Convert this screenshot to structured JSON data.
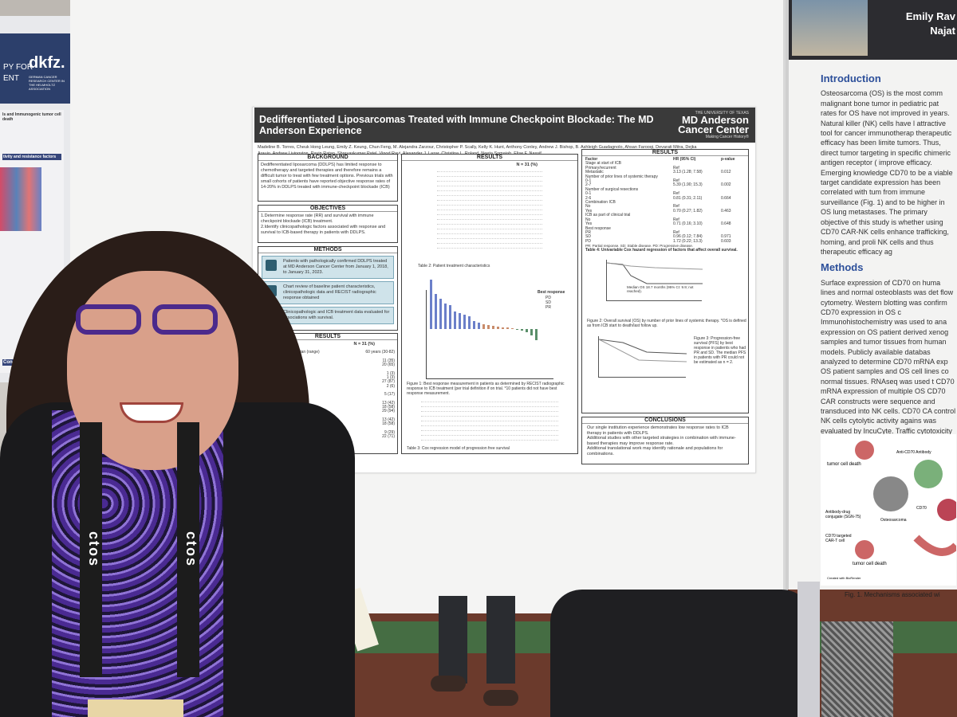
{
  "left_poster": {
    "header_text": "PY FOR\nENT",
    "logo": "dkfz.",
    "logo_subtitle": "GERMAN CANCER RESEARCH CENTER IN THE HELMHOLTZ ASSOCIATION",
    "heading_1": "ls and Immunogenic tumor cell death",
    "heading_2": "tivity and resistance factors",
    "footer": "Conclusion"
  },
  "main_poster": {
    "title": "Dedifferentiated Liposarcomas Treated with Immune Checkpoint Blockade: The MD Anderson Experience",
    "logo_univ": "THE UNIVERSITY OF TEXAS",
    "logo_name": "MD Anderson Cancer Center",
    "logo_motto": "Making Cancer History®",
    "authors": "Madeline B. Torres, Cheuk Hong Leung, Emily Z. Keung, Chun Feng, M. Alejandra Zarzour, Christopher P. Scally, Kelly K. Hunt, Anthony Conley, Andrew J. Bishop, B. Ashleigh Guadagnolo, Ahsan Farooqi, Devarati Mitra, Dejka Araujo, Andrew Livingston, Ravin Ratan, Shreyaskumar Patel, Vinod Ravi, Alexander J. Lazar, Christina L. Roland, Neeta Somaiah, Elise F. Nassif",
    "background_head": "BACKGROUND",
    "background_text": "Dedifferentiated liposarcoma (DDLPS) has limited response to chemotherapy and targeted therapies and therefore remains a difficult tumor to treat with few treatment options. Previous trials with small cohorts of patients have reported objective response rates of 14-20% in DDLPS treated with immune-checkpoint blockade (ICB)",
    "objectives_head": "OBJECTIVES",
    "objective_1": "1.Determine response rate (RR) and survival with immune checkpoint blockade (ICB) treatment.",
    "objective_2": "2.Identify clinicopathologic factors associated with response and survival to ICB-based therapy in patients with DDLPS.",
    "methods_head": "METHODS",
    "method_1": "Patients with pathologically confirmed DDLPS treated at MD Anderson Cancer Center from January 1, 2018, to January 31, 2023.",
    "method_2": "Chart review of baseline patient characteristics, clinicopathologic data and RECIST radiographic response obtained",
    "method_3": "Clinicopathologic and ICB treatment data evaluated for associations with survival.",
    "results_head": "RESULTS",
    "results_left_header": "N = 31 (%)",
    "results_left_rows": [
      "Characteristic",
      "Age at diagnosis, median (range)",
      "Sex",
      "Female",
      "Male",
      "Race",
      "Asian",
      "Black",
      "White",
      "Other",
      "Ethnicity",
      "Hispanic/Latino",
      "ECOG performance status",
      "0",
      "1",
      "Retroperitoneal primitive tumor",
      "Number of prior lines of systemic therapy",
      "0",
      "1-3",
      "Number of surgical resections",
      "0-1",
      "2-6"
    ],
    "results_left_vals": [
      "",
      "60 years (30-82)",
      "",
      "11 (35)",
      "20 (65)",
      "",
      "1 (3)",
      "1 (3)",
      "27 (87)",
      "2 (6)",
      "",
      "5 (17)",
      "",
      "13 (42)",
      "18 (58)",
      "29 (94)",
      "",
      "13 (42)",
      "18 (58)",
      "",
      "9 (29)",
      "22 (71)"
    ],
    "results_left_caption": "Table 1: Patient characteristics.",
    "results_mid_caption_table": "Table 2: Patient treatment characteristics",
    "results_mid_fig_caption": "Figure 1: Best response measurement in patients as determined by RECIST radiographic response to ICB treatment (per trial definition if on trial. *10 patients did not have best response measurement.",
    "results_mid_table3": "Table 3: Cox regression model of progression free survival",
    "legend_head": "Best response",
    "legend_items": [
      "PD",
      "SD",
      "PR"
    ],
    "results_right_cols": [
      "Factor",
      "HR (95% CI)",
      "p-value"
    ],
    "results_right_rows": [
      [
        "Stage at start of ICB",
        "",
        ""
      ],
      [
        "Primary/recurrent",
        "Ref",
        ""
      ],
      [
        "Metastatic",
        "3.13 (1.28; 7.58)",
        "0.012"
      ],
      [
        "Number of prior lines of systemic therapy",
        "",
        ""
      ],
      [
        "0-1",
        "Ref",
        ""
      ],
      [
        "2-7",
        "5.39 (1.90; 15.3)",
        "0.002"
      ],
      [
        "Number of surgical resections",
        "",
        ""
      ],
      [
        "0-1",
        "Ref",
        ""
      ],
      [
        "2-6",
        "0.81 (0.31; 2.11)",
        "0.664"
      ],
      [
        "Combination ICB",
        "",
        ""
      ],
      [
        "No",
        "Ref",
        ""
      ],
      [
        "Yes",
        "0.70 (0.27; 1.82)",
        "0.463"
      ],
      [
        "ICB as part of clinical trial",
        "",
        ""
      ],
      [
        "No",
        "Ref",
        ""
      ],
      [
        "Yes",
        "0.71 (0.16; 3.10)",
        "0.648"
      ],
      [
        "Best response",
        "",
        ""
      ],
      [
        "PR",
        "Ref",
        ""
      ],
      [
        "SD",
        "0.96 (0.12; 7.84)",
        "0.971"
      ],
      [
        "PD",
        "1.72 (0.22; 13.3)",
        "0.603"
      ]
    ],
    "results_right_foot": "PR: Partial response. SD: Stable disease. PD: Progressive disease.",
    "table4_caption": "Table 4: Univariable Cox hazard regression of factors that affect overall survival.",
    "median_os": "Median OS 18.7 months (95% CI: 9.9; not reached).",
    "fig2_caption": "Figure 2: Overall survival (OS) by number of prior lines of systemic therapy. *OS is defined as from ICB start to death/last follow up.",
    "fig3_caption": "Figure 3: Progression-free survival (PFS) by best response in patients who had PR and SD. The median PFS in patients with PR could not be estimated as n = 2.",
    "conclusions_head": "CONCLUSIONS",
    "conclusion_1": "Our single institution experience demonstrates low response rates to ICB therapy in patients with DDLPS.",
    "conclusion_2": "Additional studies with other targeted strategies in combination with immune-based therapies may improve response rate.",
    "conclusion_3": "Additional translational work may identify rationale and populations for combinations."
  },
  "right_poster": {
    "author_1": "Emily Rav",
    "author_2": "Najat",
    "intro_head": "Introduction",
    "intro_text": "Osteosarcoma (OS) is the most comm malignant bone tumor in pediatric pat rates for OS have not improved in years. Natural killer (NK) cells have l attractive tool for cancer immunotherap therapeutic efficacy has been limite tumors. Thus, direct tumor targeting in specific chimeric antigen receptor ( improve efficacy. Emerging knowledge CD70 to be a viable target candidate expression has been correlated with tum from immune surveillance (Fig. 1) and to be higher in OS lung metastases. The primary objective of this study is whether using CD70 CAR-NK cells enhance trafficking, homing, and proli NK cells and thus therapeutic efficacy ag",
    "methods_head": "Methods",
    "methods_text": "Surface expression of CD70 on huma lines and normal osteoblasts was det flow cytometry. Western blotting was confirm CD70 expression in OS c Immunohistochemistry was used to ana expression on OS patient derived xenog samples and tumor tissues from human models. Publicly available databas analyzed to determine CD70 mRNA exp OS patient samples and OS cell lines co normal tissues. RNAseq was used t CD70 mRNA expression of multiple OS CD70 CAR constructs were sequence and transduced into NK cells. CD70 CA control NK cells cytolytic activity agains was evaluated by IncuCyte. Traffic cytotoxicity of CD70 CAR NK cells was a a 3D OS spheroid model. In vitro cytokin was measured upon CD70 CAR NK exposure to OS cells (IsoPlexis).",
    "fig_labels": [
      "tumor cell death",
      "Anti-CD70 Antibody",
      "CD70",
      "Osteosarcoma",
      "Antibody-drug conjugate (SGN-75)",
      "CD70 targeted CAR-T cell",
      "tumor cell death"
    ],
    "fig_credit": "Created with BioRender",
    "fig_caption": "Fig. 1. Mechanisms associated wi"
  },
  "lanyard_text": "ctos"
}
